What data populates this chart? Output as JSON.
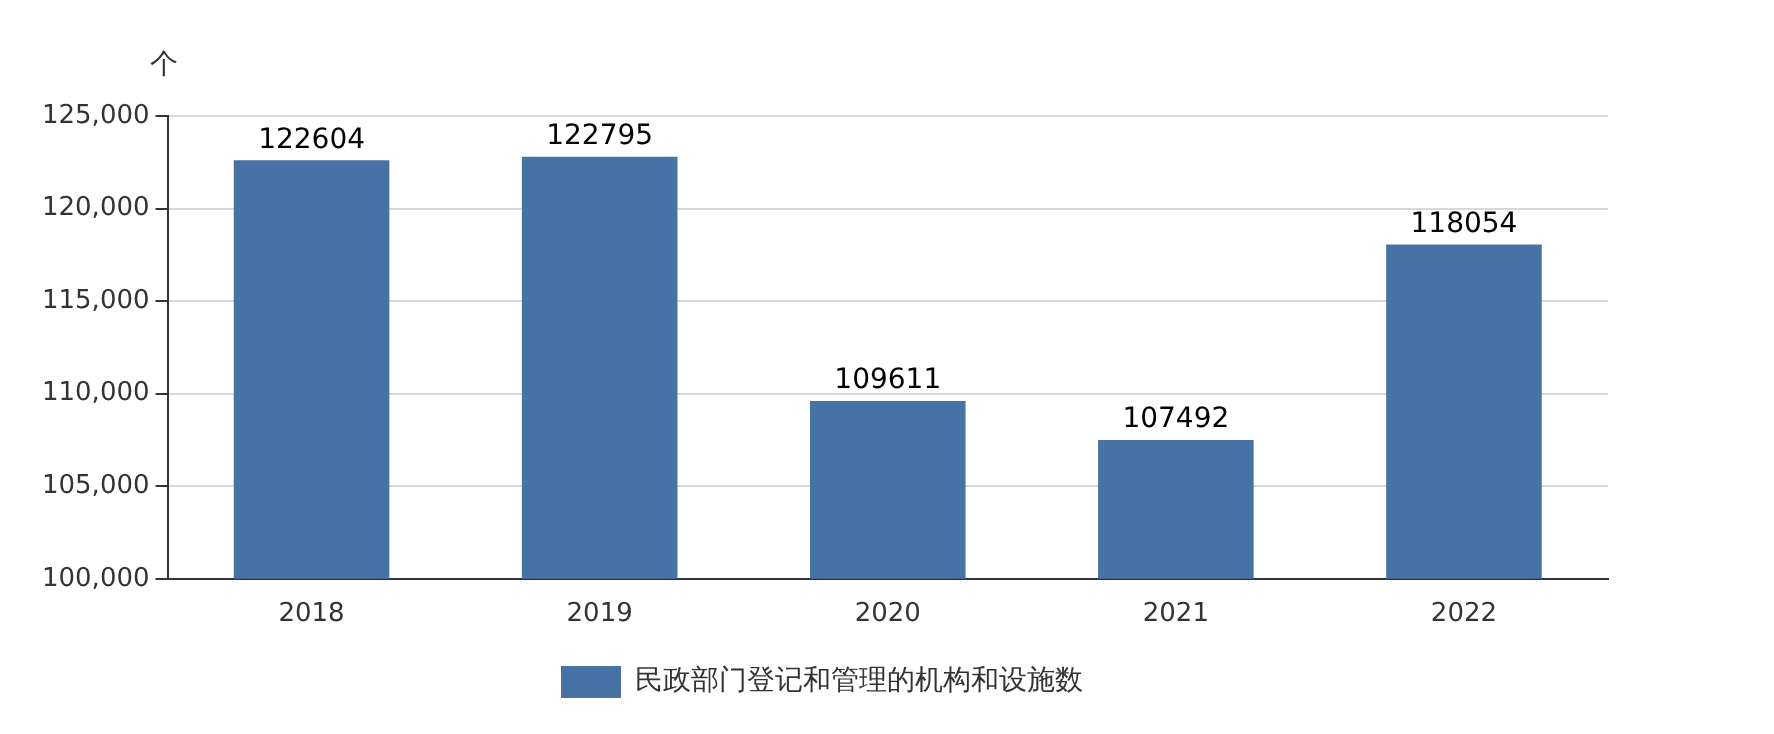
{
  "chart_data": {
    "type": "bar",
    "ylabel": "个",
    "categories": [
      "2018",
      "2019",
      "2020",
      "2021",
      "2022"
    ],
    "series": [
      {
        "name": "民政部门登记和管理的机构和设施数",
        "color": "#4672a6",
        "values": [
          122604,
          122795,
          109611,
          107492,
          118054
        ]
      }
    ],
    "ylim": [
      100000,
      125000
    ],
    "yticks": [
      {
        "value": 100000,
        "label": "100,000"
      },
      {
        "value": 105000,
        "label": "105,000"
      },
      {
        "value": 110000,
        "label": "110,000"
      },
      {
        "value": 115000,
        "label": "115,000"
      },
      {
        "value": 120000,
        "label": "120,000"
      },
      {
        "value": 125000,
        "label": "125,000"
      }
    ],
    "grid": "y",
    "legend": "bottom",
    "data_labels": true
  }
}
